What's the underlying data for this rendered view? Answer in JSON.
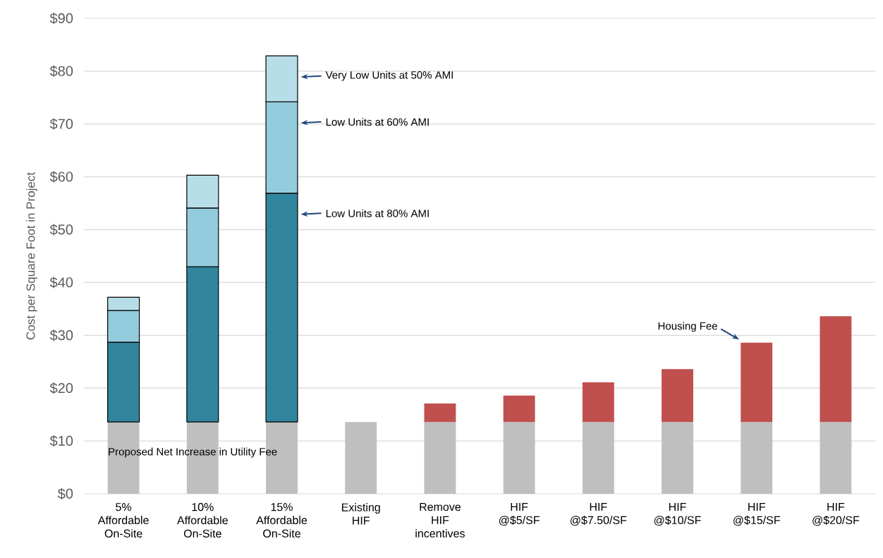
{
  "chart_data": {
    "type": "bar",
    "stacked": true,
    "ylabel": "Cost per Square Foot in Project",
    "categories": [
      "5% Affordable On-Site",
      "10% Affordable On-Site",
      "15% Affordable On-Site",
      "Existing HIF",
      "Remove HIF incentives",
      "HIF @$5/SF",
      "HIF @$7.50/SF",
      "HIF @$10/SF",
      "HIF @$15/SF",
      "HIF @$20/SF"
    ],
    "series": [
      {
        "name": "Proposed Net Increase in Utility Fee",
        "color": "#bfbfbf",
        "values": [
          13.6,
          13.6,
          13.6,
          13.6,
          13.6,
          13.6,
          13.6,
          13.6,
          13.6,
          13.6
        ]
      },
      {
        "name": "Low Units at 80% AMI",
        "color": "#31859c",
        "values": [
          15.1,
          29.4,
          43.3,
          null,
          null,
          null,
          null,
          null,
          null,
          null
        ]
      },
      {
        "name": "Low Units at 60% AMI",
        "color": "#93cddd",
        "values": [
          6.0,
          11.1,
          17.3,
          null,
          null,
          null,
          null,
          null,
          null,
          null
        ]
      },
      {
        "name": "Very Low Units at 50% AMI",
        "color": "#b7dee8",
        "values": [
          2.5,
          6.2,
          8.7,
          null,
          null,
          null,
          null,
          null,
          null,
          null
        ]
      },
      {
        "name": "Housing Fee",
        "color": "#c0504d",
        "values": [
          null,
          null,
          null,
          null,
          3.5,
          5,
          7.5,
          10,
          15,
          20
        ]
      }
    ],
    "ylim": [
      0,
      90
    ],
    "yticks": [
      {
        "value": 0,
        "label": "$0"
      },
      {
        "value": 10,
        "label": "$10"
      },
      {
        "value": 20,
        "label": "$20"
      },
      {
        "value": 30,
        "label": "$30"
      },
      {
        "value": 40,
        "label": "$40"
      },
      {
        "value": 50,
        "label": "$50"
      },
      {
        "value": 60,
        "label": "$60"
      },
      {
        "value": 70,
        "label": "$70"
      },
      {
        "value": 80,
        "label": "$80"
      },
      {
        "value": 90,
        "label": "$90"
      }
    ],
    "grid": "y"
  }
}
